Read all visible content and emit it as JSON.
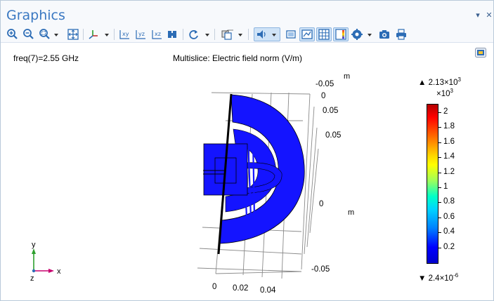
{
  "window": {
    "title": "Graphics",
    "menu_glyph": "▾",
    "close_glyph": "✕"
  },
  "toolbar": {
    "buttons": [
      {
        "name": "zoom-in-icon"
      },
      {
        "name": "zoom-out-icon"
      },
      {
        "name": "zoom-box-icon"
      },
      {
        "name": "zoom-extents-icon"
      },
      {
        "name": "axis-orientation-icon"
      },
      {
        "name": "xy-view-icon",
        "label": "xy"
      },
      {
        "name": "yz-view-icon",
        "label": "yz"
      },
      {
        "name": "xz-view-icon",
        "label": "xz"
      },
      {
        "name": "go-to-view-icon"
      },
      {
        "name": "rotate-icon"
      },
      {
        "name": "select-domain-icon"
      },
      {
        "name": "scene-light-icon"
      },
      {
        "name": "transparency-icon"
      },
      {
        "name": "wireframe-icon"
      },
      {
        "name": "grid-icon"
      },
      {
        "name": "show-legends-icon"
      },
      {
        "name": "render-settings-icon"
      },
      {
        "name": "image-snapshot-icon"
      },
      {
        "name": "print-icon"
      }
    ]
  },
  "plot": {
    "freq_label": "freq(7)=2.55 GHz",
    "title": "Multislice: Electric field norm (V/m)",
    "unit_top": "m",
    "unit_right": "m",
    "y_ticks": [
      "-0.05",
      "0",
      "0.05",
      "0.05",
      "0",
      "-0.05"
    ],
    "x_ticks": [
      "0",
      "0.02",
      "0.04"
    ],
    "triad": {
      "y": "y",
      "x": "x",
      "z": "z"
    }
  },
  "colorbar": {
    "max_label": "▲ 2.13×10",
    "max_exp": "3",
    "multiplier": "×10",
    "multiplier_exp": "3",
    "min_label": "▼ 2.4×10",
    "min_exp": "-6",
    "ticks": [
      "2",
      "1.8",
      "1.6",
      "1.4",
      "1.2",
      "1",
      "0.8",
      "0.6",
      "0.4",
      "0.2"
    ],
    "colors": {
      "high": "#b30000",
      "low": "#0000cc",
      "field": "#1414ff"
    }
  }
}
